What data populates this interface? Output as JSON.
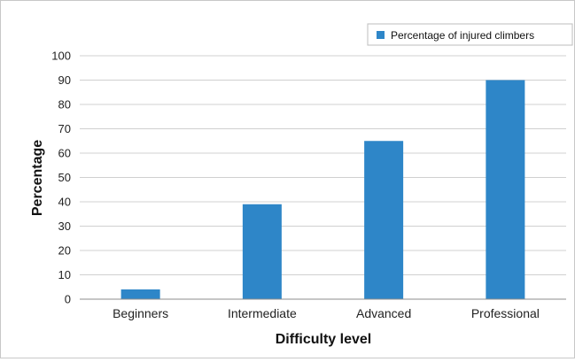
{
  "chart_data": {
    "type": "bar",
    "title": "",
    "xlabel": "Difficulty level",
    "ylabel": "Percentage",
    "categories": [
      "Beginners",
      "Intermediate",
      "Advanced",
      "Professional"
    ],
    "series": [
      {
        "name": "Percentage of injured climbers",
        "values": [
          4,
          39,
          65,
          90
        ],
        "color": "#2e86c8"
      }
    ],
    "ylim": [
      0,
      100
    ],
    "yticks": [
      "0",
      "10",
      "20",
      "30",
      "40",
      "50",
      "60",
      "70",
      "80",
      "90",
      "100"
    ],
    "grid": true,
    "legend_position": "top-right"
  }
}
